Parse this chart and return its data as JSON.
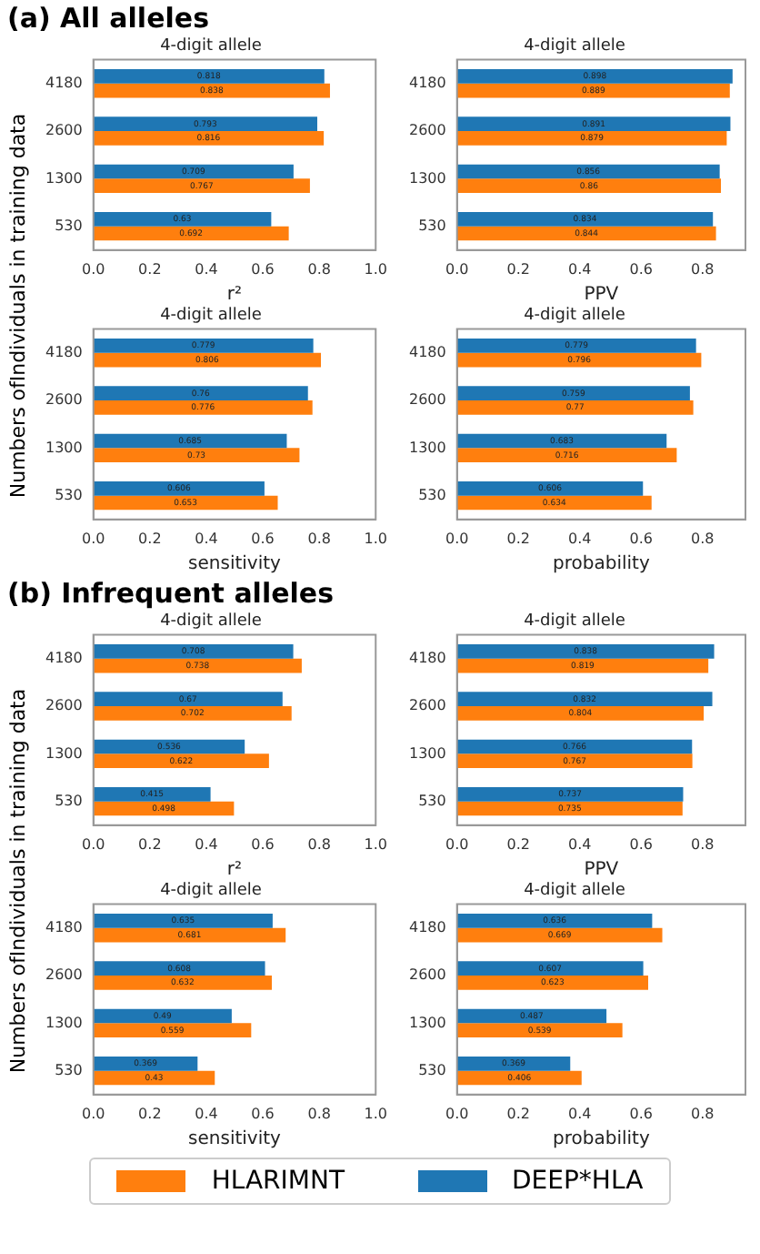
{
  "chart_data": [
    {
      "type": "bar",
      "orientation": "horizontal",
      "annotations": [
        "(a) All alleles"
      ],
      "title": "4-digit allele",
      "xlabel": "r²",
      "ylabel": "Numbers ofIndividuals in training data",
      "categories": [
        "4180",
        "2600",
        "1300",
        "530"
      ],
      "xlim": [
        0,
        1
      ],
      "xticks": [
        {
          "value": 0,
          "label": "0.0"
        },
        {
          "value": 0.2,
          "label": "0.2"
        },
        {
          "value": 0.4,
          "label": "0.4"
        },
        {
          "value": 0.6,
          "label": "0.6"
        },
        {
          "value": 0.8,
          "label": "0.8"
        },
        {
          "value": 1,
          "label": "1.0"
        }
      ],
      "data_labels": true,
      "series": [
        {
          "color": "#1f77b4",
          "values": [
            0.818,
            0.793,
            0.709,
            0.63
          ]
        },
        {
          "color": "#ff7f0e",
          "values": [
            0.838,
            0.816,
            0.767,
            0.692
          ]
        }
      ]
    },
    {
      "type": "bar",
      "orientation": "horizontal",
      "title": "4-digit allele",
      "xlabel": "PPV",
      "categories": [
        "4180",
        "2600",
        "1300",
        "530"
      ],
      "xlim": [
        0,
        0.94
      ],
      "xticks": [
        {
          "value": 0,
          "label": "0.0"
        },
        {
          "value": 0.2,
          "label": "0.2"
        },
        {
          "value": 0.4,
          "label": "0.4"
        },
        {
          "value": 0.6,
          "label": "0.6"
        },
        {
          "value": 0.8,
          "label": "0.8"
        }
      ],
      "data_labels": true,
      "series": [
        {
          "color": "#1f77b4",
          "values": [
            0.898,
            0.891,
            0.856,
            0.834
          ]
        },
        {
          "color": "#ff7f0e",
          "values": [
            0.889,
            0.879,
            0.86,
            0.844
          ]
        }
      ]
    },
    {
      "type": "bar",
      "orientation": "horizontal",
      "title": "4-digit allele",
      "xlabel": "sensitivity",
      "categories": [
        "4180",
        "2600",
        "1300",
        "530"
      ],
      "xlim": [
        0,
        1
      ],
      "xticks": [
        {
          "value": 0,
          "label": "0.0"
        },
        {
          "value": 0.2,
          "label": "0.2"
        },
        {
          "value": 0.4,
          "label": "0.4"
        },
        {
          "value": 0.6,
          "label": "0.6"
        },
        {
          "value": 0.8,
          "label": "0.8"
        },
        {
          "value": 1,
          "label": "1.0"
        }
      ],
      "data_labels": true,
      "series": [
        {
          "color": "#1f77b4",
          "values": [
            0.779,
            0.76,
            0.685,
            0.606
          ]
        },
        {
          "color": "#ff7f0e",
          "values": [
            0.806,
            0.776,
            0.73,
            0.653
          ]
        }
      ]
    },
    {
      "type": "bar",
      "orientation": "horizontal",
      "title": "4-digit allele",
      "xlabel": "probability",
      "categories": [
        "4180",
        "2600",
        "1300",
        "530"
      ],
      "xlim": [
        0,
        0.94
      ],
      "xticks": [
        {
          "value": 0,
          "label": "0.0"
        },
        {
          "value": 0.2,
          "label": "0.2"
        },
        {
          "value": 0.4,
          "label": "0.4"
        },
        {
          "value": 0.6,
          "label": "0.6"
        },
        {
          "value": 0.8,
          "label": "0.8"
        }
      ],
      "data_labels": true,
      "series": [
        {
          "color": "#1f77b4",
          "values": [
            0.779,
            0.759,
            0.683,
            0.606
          ]
        },
        {
          "color": "#ff7f0e",
          "values": [
            0.796,
            0.77,
            0.716,
            0.634
          ]
        }
      ]
    },
    {
      "type": "bar",
      "orientation": "horizontal",
      "annotations": [
        "(b) Infrequent alleles"
      ],
      "title": "4-digit allele",
      "xlabel": "r²",
      "ylabel": "Numbers ofIndividuals in training data",
      "categories": [
        "4180",
        "2600",
        "1300",
        "530"
      ],
      "xlim": [
        0,
        1
      ],
      "xticks": [
        {
          "value": 0,
          "label": "0.0"
        },
        {
          "value": 0.2,
          "label": "0.2"
        },
        {
          "value": 0.4,
          "label": "0.4"
        },
        {
          "value": 0.6,
          "label": "0.6"
        },
        {
          "value": 0.8,
          "label": "0.8"
        },
        {
          "value": 1,
          "label": "1.0"
        }
      ],
      "data_labels": true,
      "series": [
        {
          "color": "#1f77b4",
          "values": [
            0.708,
            0.67,
            0.536,
            0.415
          ]
        },
        {
          "color": "#ff7f0e",
          "values": [
            0.738,
            0.702,
            0.622,
            0.498
          ]
        }
      ]
    },
    {
      "type": "bar",
      "orientation": "horizontal",
      "title": "4-digit allele",
      "xlabel": "PPV",
      "categories": [
        "4180",
        "2600",
        "1300",
        "530"
      ],
      "xlim": [
        0,
        0.94
      ],
      "xticks": [
        {
          "value": 0,
          "label": "0.0"
        },
        {
          "value": 0.2,
          "label": "0.2"
        },
        {
          "value": 0.4,
          "label": "0.4"
        },
        {
          "value": 0.6,
          "label": "0.6"
        },
        {
          "value": 0.8,
          "label": "0.8"
        }
      ],
      "data_labels": true,
      "series": [
        {
          "color": "#1f77b4",
          "values": [
            0.838,
            0.832,
            0.766,
            0.737
          ]
        },
        {
          "color": "#ff7f0e",
          "values": [
            0.819,
            0.804,
            0.767,
            0.735
          ]
        }
      ]
    },
    {
      "type": "bar",
      "orientation": "horizontal",
      "title": "4-digit allele",
      "xlabel": "sensitivity",
      "categories": [
        "4180",
        "2600",
        "1300",
        "530"
      ],
      "xlim": [
        0,
        1
      ],
      "xticks": [
        {
          "value": 0,
          "label": "0.0"
        },
        {
          "value": 0.2,
          "label": "0.2"
        },
        {
          "value": 0.4,
          "label": "0.4"
        },
        {
          "value": 0.6,
          "label": "0.6"
        },
        {
          "value": 0.8,
          "label": "0.8"
        },
        {
          "value": 1,
          "label": "1.0"
        }
      ],
      "data_labels": true,
      "series": [
        {
          "color": "#1f77b4",
          "values": [
            0.635,
            0.608,
            0.49,
            0.369
          ]
        },
        {
          "color": "#ff7f0e",
          "values": [
            0.681,
            0.632,
            0.559,
            0.43
          ]
        }
      ]
    },
    {
      "type": "bar",
      "orientation": "horizontal",
      "title": "4-digit allele",
      "xlabel": "probability",
      "categories": [
        "4180",
        "2600",
        "1300",
        "530"
      ],
      "xlim": [
        0,
        0.94
      ],
      "xticks": [
        {
          "value": 0,
          "label": "0.0"
        },
        {
          "value": 0.2,
          "label": "0.2"
        },
        {
          "value": 0.4,
          "label": "0.4"
        },
        {
          "value": 0.6,
          "label": "0.6"
        },
        {
          "value": 0.8,
          "label": "0.8"
        }
      ],
      "data_labels": true,
      "legend": "bottom",
      "series": [
        {
          "name": "DEEP*HLA",
          "color": "#1f77b4",
          "values": [
            0.636,
            0.607,
            0.487,
            0.369
          ]
        },
        {
          "name": "HLARIMNT",
          "color": "#ff7f0e",
          "values": [
            0.669,
            0.623,
            0.539,
            0.406
          ]
        }
      ]
    }
  ]
}
